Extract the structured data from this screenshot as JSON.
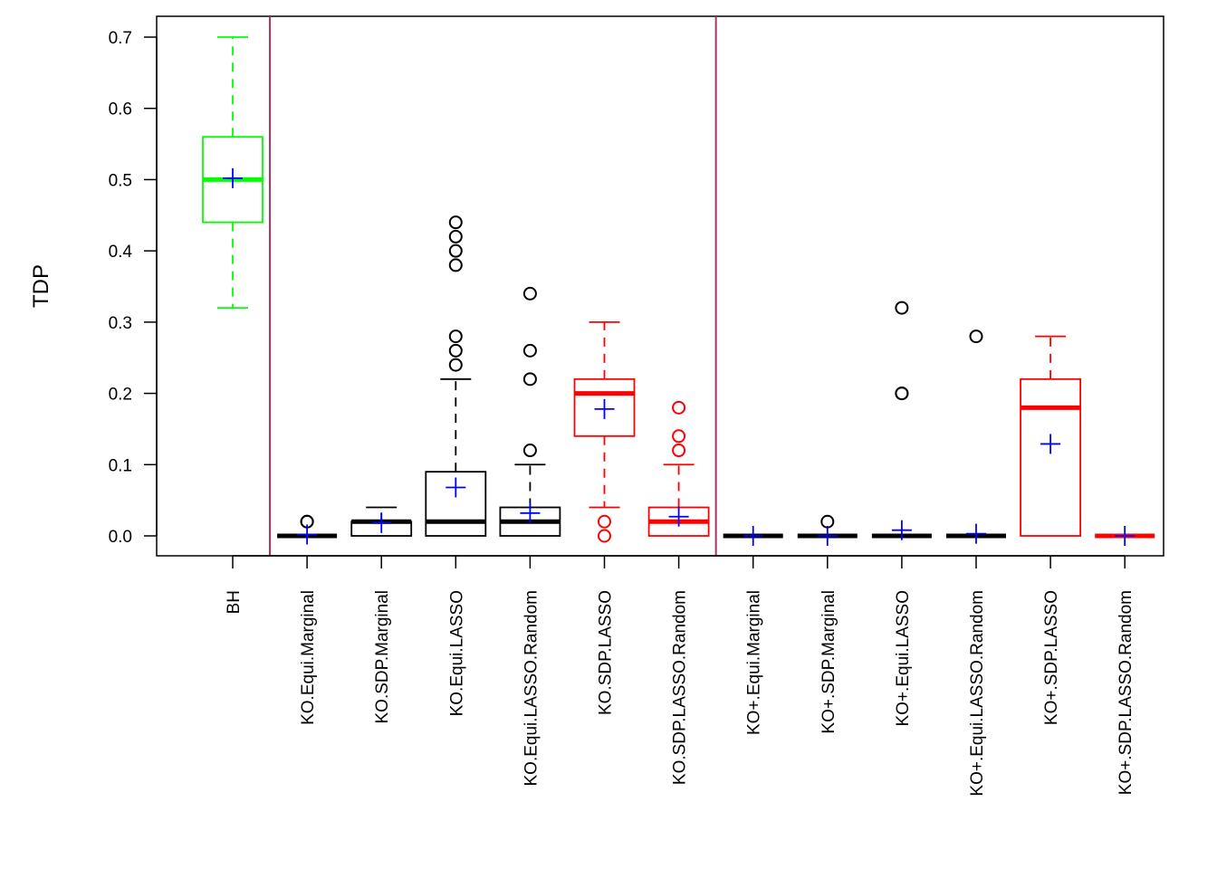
{
  "chart_data": {
    "type": "boxplot",
    "title": "",
    "xlabel": "",
    "ylabel": "TDP",
    "ylim": [
      -0.027,
      0.73
    ],
    "yticks": [
      0.0,
      0.1,
      0.2,
      0.3,
      0.4,
      0.5,
      0.6,
      0.7
    ],
    "ytick_labels": [
      "0.0",
      "0.1",
      "0.2",
      "0.3",
      "0.4",
      "0.5",
      "0.6",
      "0.7"
    ],
    "grid": false,
    "legend": null,
    "separators_after_index": [
      0,
      6
    ],
    "separator_color": "#b03060",
    "mean_marker_color": "#0000ff",
    "categories": [
      "BH",
      "KO.Equi.Marginal",
      "KO.SDP.Marginal",
      "KO.Equi.LASSO",
      "KO.Equi.LASSO.Random",
      "KO.SDP.LASSO",
      "KO.SDP.LASSO.Random",
      "KO+.Equi.Marginal",
      "KO+.SDP.Marginal",
      "KO+.Equi.LASSO",
      "KO+.Equi.LASSO.Random",
      "KO+.SDP.LASSO",
      "KO+.SDP.LASSO.Random"
    ],
    "boxes": [
      {
        "name": "BH",
        "color": "#00ff00",
        "whisker_low": 0.32,
        "q1": 0.44,
        "median": 0.5,
        "q3": 0.56,
        "whisker_high": 0.7,
        "mean": 0.502,
        "outliers": []
      },
      {
        "name": "KO.Equi.Marginal",
        "color": "#000000",
        "whisker_low": 0.0,
        "q1": 0.0,
        "median": 0.0,
        "q3": 0.0,
        "whisker_high": 0.0,
        "mean": 0.002,
        "outliers": [
          0.02,
          0.02
        ]
      },
      {
        "name": "KO.SDP.Marginal",
        "color": "#000000",
        "whisker_low": 0.0,
        "q1": 0.0,
        "median": 0.02,
        "q3": 0.02,
        "whisker_high": 0.04,
        "mean": 0.018,
        "outliers": []
      },
      {
        "name": "KO.Equi.LASSO",
        "color": "#000000",
        "whisker_low": 0.0,
        "q1": 0.0,
        "median": 0.02,
        "q3": 0.09,
        "whisker_high": 0.22,
        "mean": 0.068,
        "outliers": [
          0.24,
          0.26,
          0.28,
          0.38,
          0.4,
          0.42,
          0.44
        ]
      },
      {
        "name": "KO.Equi.LASSO.Random",
        "color": "#000000",
        "whisker_low": 0.0,
        "q1": 0.0,
        "median": 0.02,
        "q3": 0.04,
        "whisker_high": 0.1,
        "mean": 0.032,
        "outliers": [
          0.12,
          0.22,
          0.26,
          0.34
        ]
      },
      {
        "name": "KO.SDP.LASSO",
        "color": "#ff0000",
        "whisker_low": 0.04,
        "q1": 0.14,
        "median": 0.2,
        "q3": 0.22,
        "whisker_high": 0.3,
        "mean": 0.178,
        "outliers": [
          0.0,
          0.02
        ]
      },
      {
        "name": "KO.SDP.LASSO.Random",
        "color": "#ff0000",
        "whisker_low": 0.0,
        "q1": 0.0,
        "median": 0.02,
        "q3": 0.04,
        "whisker_high": 0.1,
        "mean": 0.027,
        "outliers": [
          0.12,
          0.14,
          0.18
        ]
      },
      {
        "name": "KO+.Equi.Marginal",
        "color": "#000000",
        "whisker_low": 0.0,
        "q1": 0.0,
        "median": 0.0,
        "q3": 0.0,
        "whisker_high": 0.0,
        "mean": 0.0,
        "outliers": []
      },
      {
        "name": "KO+.SDP.Marginal",
        "color": "#000000",
        "whisker_low": 0.0,
        "q1": 0.0,
        "median": 0.0,
        "q3": 0.0,
        "whisker_high": 0.0,
        "mean": 0.0,
        "outliers": [
          0.02
        ]
      },
      {
        "name": "KO+.Equi.LASSO",
        "color": "#000000",
        "whisker_low": 0.0,
        "q1": 0.0,
        "median": 0.0,
        "q3": 0.0,
        "whisker_high": 0.0,
        "mean": 0.008,
        "outliers": [
          0.2,
          0.2,
          0.32
        ]
      },
      {
        "name": "KO+.Equi.LASSO.Random",
        "color": "#000000",
        "whisker_low": 0.0,
        "q1": 0.0,
        "median": 0.0,
        "q3": 0.0,
        "whisker_high": 0.0,
        "mean": 0.003,
        "outliers": [
          0.28
        ]
      },
      {
        "name": "KO+.SDP.LASSO",
        "color": "#ff0000",
        "whisker_low": 0.0,
        "q1": 0.0,
        "median": 0.18,
        "q3": 0.22,
        "whisker_high": 0.28,
        "mean": 0.129,
        "outliers": []
      },
      {
        "name": "KO+.SDP.LASSO.Random",
        "color": "#ff0000",
        "whisker_low": 0.0,
        "q1": 0.0,
        "median": 0.0,
        "q3": 0.0,
        "whisker_high": 0.0,
        "mean": 0.0,
        "outliers": []
      }
    ]
  }
}
